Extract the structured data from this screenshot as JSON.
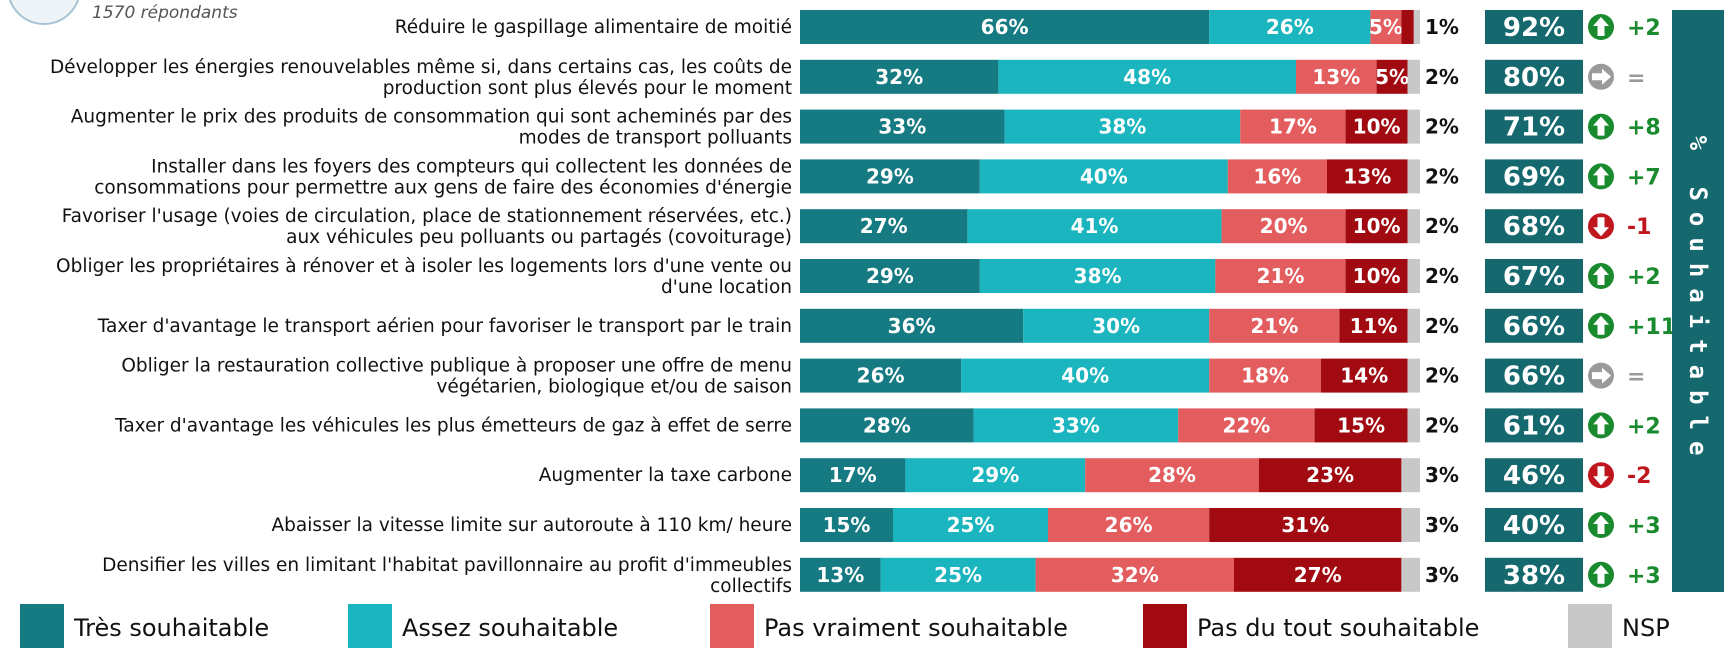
{
  "header": {
    "respondents": "1570 répondants"
  },
  "colors": {
    "tres": "#167a82",
    "assez": "#1ab5bf",
    "pas_vraiment": "#e35d5f",
    "pas_du_tout": "#a10a10",
    "nsp": "#c8c8c8",
    "total_box": "#16686f",
    "up": "#1a8a2e",
    "down": "#c0161e",
    "flat": "#9a9a9a"
  },
  "sidebar": {
    "label": "% Souhaitable",
    "letters": [
      "%",
      "S",
      "o",
      "u",
      "h",
      "a",
      "i",
      "t",
      "a",
      "b",
      "l",
      "e"
    ]
  },
  "legend": [
    {
      "key": "tres",
      "label": "Très souhaitable"
    },
    {
      "key": "assez",
      "label": "Assez souhaitable"
    },
    {
      "key": "pas_vraiment",
      "label": "Pas vraiment souhaitable"
    },
    {
      "key": "pas_du_tout",
      "label": "Pas du tout souhaitable"
    },
    {
      "key": "nsp",
      "label": "NSP"
    }
  ],
  "chart_data": {
    "type": "bar",
    "orientation": "horizontal",
    "stacked": true,
    "xlim": [
      0,
      100
    ],
    "series_names": [
      "Très souhaitable",
      "Assez souhaitable",
      "Pas vraiment souhaitable",
      "Pas du tout souhaitable",
      "NSP"
    ],
    "rows": [
      {
        "label": [
          "Réduire le gaspillage alimentaire de moitié"
        ],
        "values": [
          66,
          26,
          5,
          2,
          1
        ],
        "total": "92%",
        "trend": "up",
        "delta": "+2"
      },
      {
        "label": [
          "Développer les énergies renouvelables même si, dans certains cas, les coûts de",
          "production sont plus élevés pour le moment"
        ],
        "values": [
          32,
          48,
          13,
          5,
          2
        ],
        "total": "80%",
        "trend": "flat",
        "delta": "="
      },
      {
        "label": [
          "Augmenter le prix des produits de consommation qui sont acheminés par des",
          "modes de transport polluants"
        ],
        "values": [
          33,
          38,
          17,
          10,
          2
        ],
        "total": "71%",
        "trend": "up",
        "delta": "+8"
      },
      {
        "label": [
          "Installer dans les foyers des compteurs qui collectent les données de",
          "consommations pour permettre aux gens de faire des économies d'énergie"
        ],
        "values": [
          29,
          40,
          16,
          13,
          2
        ],
        "total": "69%",
        "trend": "up",
        "delta": "+7"
      },
      {
        "label": [
          "Favoriser l'usage (voies de circulation, place de stationnement réservées, etc.)",
          "aux véhicules peu polluants ou partagés (covoiturage)"
        ],
        "values": [
          27,
          41,
          20,
          10,
          2
        ],
        "total": "68%",
        "trend": "down",
        "delta": "-1"
      },
      {
        "label": [
          "Obliger les propriétaires à rénover et à isoler les logements lors d'une vente ou",
          "d'une location"
        ],
        "values": [
          29,
          38,
          21,
          10,
          2
        ],
        "total": "67%",
        "trend": "up",
        "delta": "+2"
      },
      {
        "label": [
          "Taxer d'avantage le transport aérien pour favoriser le transport par le train"
        ],
        "values": [
          36,
          30,
          21,
          11,
          2
        ],
        "total": "66%",
        "trend": "up",
        "delta": "+11"
      },
      {
        "label": [
          "Obliger la restauration collective publique à proposer une offre de menu",
          "végétarien, biologique et/ou de saison"
        ],
        "values": [
          26,
          40,
          18,
          14,
          2
        ],
        "total": "66%",
        "trend": "flat",
        "delta": "="
      },
      {
        "label": [
          "Taxer d'avantage les véhicules les plus émetteurs de gaz à effet de serre"
        ],
        "values": [
          28,
          33,
          22,
          15,
          2
        ],
        "total": "61%",
        "trend": "up",
        "delta": "+2"
      },
      {
        "label": [
          "Augmenter la taxe carbone"
        ],
        "values": [
          17,
          29,
          28,
          23,
          3
        ],
        "total": "46%",
        "trend": "down",
        "delta": "-2"
      },
      {
        "label": [
          "Abaisser la vitesse limite sur autoroute à 110 km/ heure"
        ],
        "values": [
          15,
          25,
          26,
          31,
          3
        ],
        "total": "40%",
        "trend": "up",
        "delta": "+3"
      },
      {
        "label": [
          "Densifier les villes en limitant l'habitat pavillonnaire au profit d'immeubles",
          "collectifs"
        ],
        "values": [
          13,
          25,
          32,
          27,
          3
        ],
        "total": "38%",
        "trend": "up",
        "delta": "+3"
      }
    ]
  }
}
